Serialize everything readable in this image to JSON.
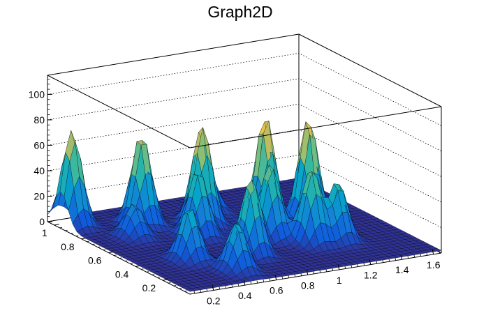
{
  "chart_data": {
    "type": "surface3d",
    "title": "Graph2D",
    "xlabel": "",
    "ylabel": "",
    "zlabel": "",
    "xlim": [
      0.05,
      1.65
    ],
    "ylim": [
      0.0,
      1.05
    ],
    "zlim": [
      0,
      115
    ],
    "x_ticks": [
      "0.2",
      "0.4",
      "0.6",
      "0.8",
      "1",
      "1.2",
      "1.4",
      "1.6"
    ],
    "y_ticks": [
      "0.2",
      "0.4",
      "0.6",
      "0.8",
      "1"
    ],
    "z_ticks": [
      "0",
      "20",
      "40",
      "60",
      "80",
      "100"
    ],
    "x_tick_values": [
      0.2,
      0.4,
      0.6,
      0.8,
      1.0,
      1.2,
      1.4,
      1.6
    ],
    "y_tick_values": [
      0.2,
      0.4,
      0.6,
      0.8,
      1.0
    ],
    "z_tick_values": [
      0,
      20,
      40,
      60,
      80,
      100
    ],
    "grid": true,
    "palette": "kBird",
    "palette_colors": [
      "#352a87",
      "#0f5cdd",
      "#1481d6",
      "#06a4ca",
      "#2eb7a4",
      "#87bf77",
      "#d1bb59",
      "#fec832",
      "#f9fb0e"
    ],
    "peaks": [
      {
        "x": 0.12,
        "y": 0.95,
        "z": 74
      },
      {
        "x": 0.45,
        "y": 0.82,
        "z": 72
      },
      {
        "x": 0.75,
        "y": 0.72,
        "z": 78
      },
      {
        "x": 1.05,
        "y": 0.6,
        "z": 86
      },
      {
        "x": 1.28,
        "y": 0.55,
        "z": 82
      },
      {
        "x": 0.62,
        "y": 0.6,
        "z": 52
      },
      {
        "x": 0.95,
        "y": 0.45,
        "z": 58
      },
      {
        "x": 0.35,
        "y": 0.35,
        "z": 42
      },
      {
        "x": 0.7,
        "y": 0.3,
        "z": 60
      },
      {
        "x": 1.1,
        "y": 0.32,
        "z": 58
      },
      {
        "x": 1.25,
        "y": 0.3,
        "z": 46
      },
      {
        "x": 0.48,
        "y": 0.15,
        "z": 38
      },
      {
        "x": 0.3,
        "y": 0.7,
        "z": 26
      },
      {
        "x": 0.9,
        "y": 0.85,
        "z": 30
      }
    ],
    "baseline_z": 2
  }
}
